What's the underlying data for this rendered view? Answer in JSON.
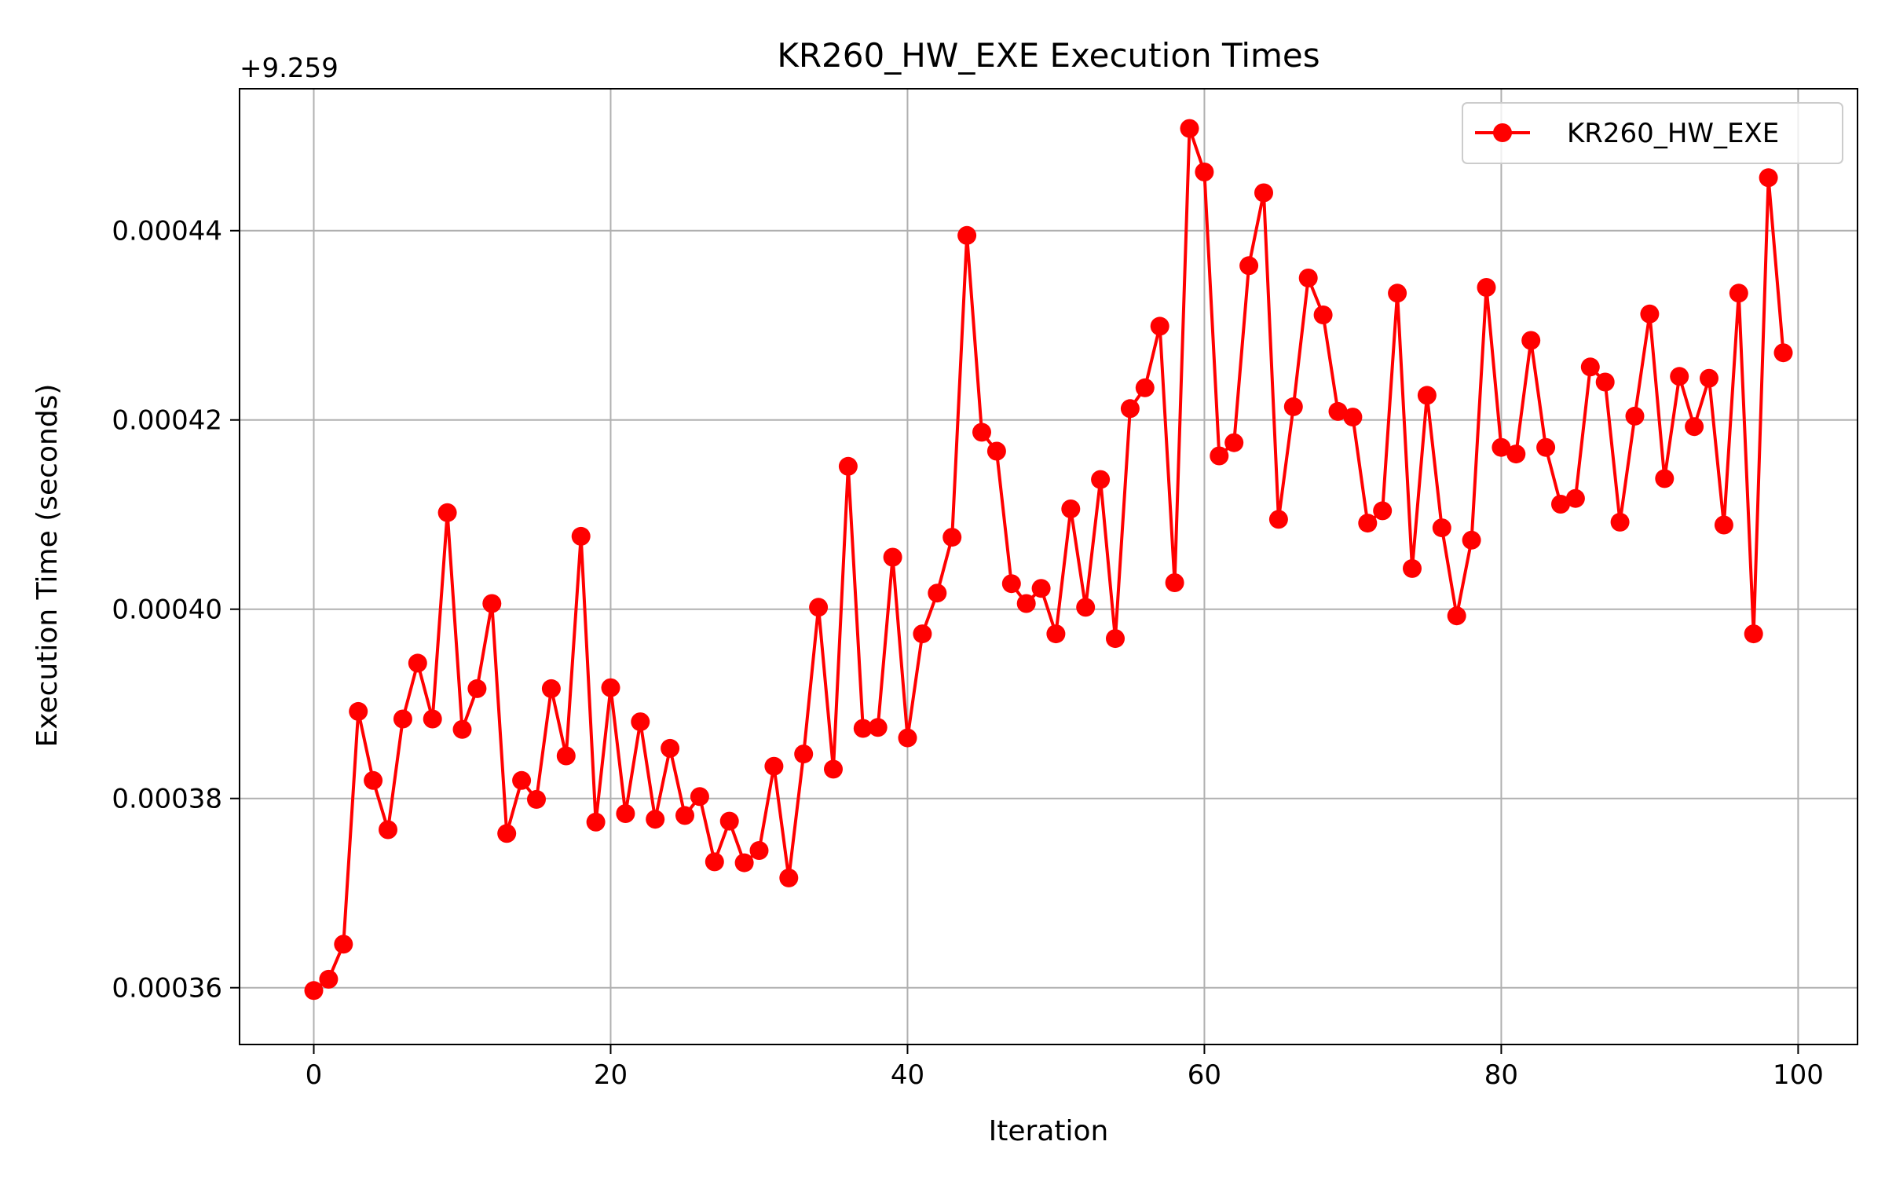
{
  "chart_data": {
    "type": "line",
    "title": "KR260_HW_EXE Execution Times",
    "xlabel": "Iteration",
    "ylabel": "Execution Time (seconds)",
    "y_offset_label": "+9.259",
    "y_offset": 9.259,
    "xlim": [
      -5,
      104
    ],
    "ylim": [
      0.000354,
      0.000455
    ],
    "x_ticks": [
      0,
      20,
      40,
      60,
      80,
      100
    ],
    "x_tick_labels": [
      "0",
      "20",
      "40",
      "60",
      "80",
      "100"
    ],
    "y_ticks": [
      0.00036,
      0.00038,
      0.0004,
      0.00042,
      0.00044
    ],
    "y_tick_labels": [
      "0.00036",
      "0.00038",
      "0.00040",
      "0.00042",
      "0.00044"
    ],
    "grid": true,
    "legend_position": "top-right",
    "colors": {
      "series": "#ff0000",
      "grid": "#b0b0b0",
      "axes": "#000000"
    },
    "series": [
      {
        "name": "KR260_HW_EXE",
        "marker": "circle",
        "x": [
          0,
          1,
          2,
          3,
          4,
          5,
          6,
          7,
          8,
          9,
          10,
          11,
          12,
          13,
          14,
          15,
          16,
          17,
          18,
          19,
          20,
          21,
          22,
          23,
          24,
          25,
          26,
          27,
          28,
          29,
          30,
          31,
          32,
          33,
          34,
          35,
          36,
          37,
          38,
          39,
          40,
          41,
          42,
          43,
          44,
          45,
          46,
          47,
          48,
          49,
          50,
          51,
          52,
          53,
          54,
          55,
          56,
          57,
          58,
          59,
          60,
          61,
          62,
          63,
          64,
          65,
          66,
          67,
          68,
          69,
          70,
          71,
          72,
          73,
          74,
          75,
          76,
          77,
          78,
          79,
          80,
          81,
          82,
          83,
          84,
          85,
          86,
          87,
          88,
          89,
          90,
          91,
          92,
          93,
          94,
          95,
          96,
          97,
          98,
          99
        ],
        "values": [
          0.0003597,
          0.0003609,
          0.0003646,
          0.0003892,
          0.0003819,
          0.0003767,
          0.0003884,
          0.0003943,
          0.0003884,
          0.0004102,
          0.0003873,
          0.0003916,
          0.0004006,
          0.0003763,
          0.0003819,
          0.0003799,
          0.0003916,
          0.0003845,
          0.0004077,
          0.0003775,
          0.0003917,
          0.0003784,
          0.0003881,
          0.0003778,
          0.0003853,
          0.0003782,
          0.0003802,
          0.0003733,
          0.0003776,
          0.0003732,
          0.0003745,
          0.0003834,
          0.0003716,
          0.0003847,
          0.0004002,
          0.0003831,
          0.0004151,
          0.0003874,
          0.0003875,
          0.0004055,
          0.0003864,
          0.0003974,
          0.0004017,
          0.0004076,
          0.0004395,
          0.0004187,
          0.0004167,
          0.0004027,
          0.0004006,
          0.0004022,
          0.0003974,
          0.0004106,
          0.0004002,
          0.0004137,
          0.0003969,
          0.0004212,
          0.0004234,
          0.0004299,
          0.0004028,
          0.0004508,
          0.0004462,
          0.0004162,
          0.0004176,
          0.0004363,
          0.000444,
          0.0004095,
          0.0004214,
          0.000435,
          0.0004311,
          0.0004209,
          0.0004203,
          0.0004091,
          0.0004104,
          0.0004334,
          0.0004043,
          0.0004226,
          0.0004086,
          0.0003993,
          0.0004073,
          0.000434,
          0.0004171,
          0.0004164,
          0.0004284,
          0.0004171,
          0.0004111,
          0.0004117,
          0.0004256,
          0.000424,
          0.0004092,
          0.0004204,
          0.0004312,
          0.0004138,
          0.0004246,
          0.0004193,
          0.0004244,
          0.0004089,
          0.0004334,
          0.0003974,
          0.0004456,
          0.0004271
        ]
      }
    ]
  }
}
